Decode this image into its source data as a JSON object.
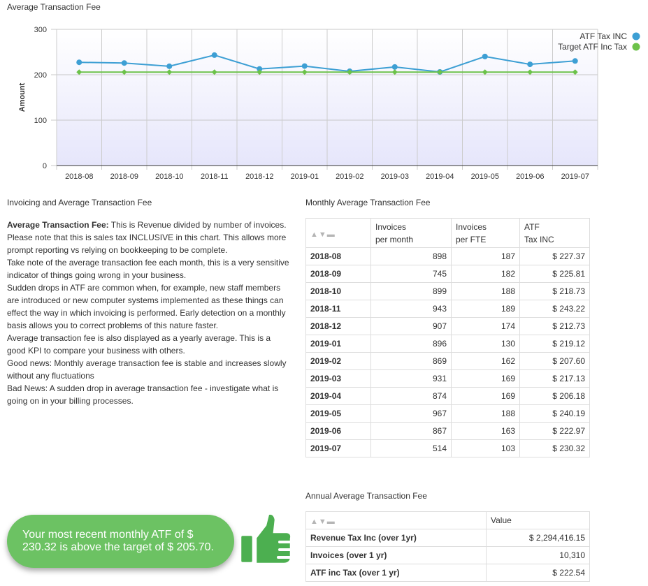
{
  "chart_title": "Average Transaction Fee",
  "chart_data": {
    "type": "line",
    "title": "Average Transaction Fee",
    "xlabel": "",
    "ylabel": "Amount",
    "ylim": [
      0,
      300
    ],
    "yticks": [
      "0",
      "100",
      "200",
      "300"
    ],
    "categories": [
      "2018-08",
      "2018-09",
      "2018-10",
      "2018-11",
      "2018-12",
      "2019-01",
      "2019-02",
      "2019-03",
      "2019-04",
      "2019-05",
      "2019-06",
      "2019-07"
    ],
    "series": [
      {
        "name": "ATF Tax INC",
        "color": "#3d9fd4",
        "values": [
          227.37,
          225.81,
          218.73,
          243.22,
          212.73,
          219.12,
          207.6,
          217.13,
          206.18,
          240.19,
          222.97,
          230.32
        ]
      },
      {
        "name": "Target ATF Inc Tax",
        "color": "#6cc24a",
        "values": [
          205.7,
          205.7,
          205.7,
          205.7,
          205.7,
          205.7,
          205.7,
          205.7,
          205.7,
          205.7,
          205.7,
          205.7
        ]
      }
    ],
    "legend": "top-right",
    "grid": true
  },
  "left_section": {
    "title": "Invoicing and Average Transaction Fee",
    "lead_label": "Average Transaction Fee:",
    "lead_text": " This is Revenue divided by number of invoices. Please note that this is sales tax INCLUSIVE in this chart. This allows more prompt reporting vs relying on bookkeeping to be complete.",
    "p2": "Take note of the average transaction fee each month, this is a very sensitive indicator of things going wrong in your business.",
    "p3": "Sudden drops in ATF are common when, for example, new staff members are introduced or new computer systems implemented as these things can effect the way in which invoicing is performed. Early detection on a monthly basis allows you to correct problems of this nature faster.",
    "p4": "Average transaction fee is also displayed as a yearly average. This is a good KPI to compare your business with others.",
    "p5": "Good news: Monthly average transaction fee is stable and increases slowly without any fluctuations",
    "p6": "Bad News: A sudden drop in average transaction fee - investigate what is going on in your billing processes."
  },
  "monthly": {
    "title": "Monthly Average Transaction Fee",
    "sort_icon": "▲▼▬",
    "headers": {
      "h1a": "Invoices",
      "h1b": "per month",
      "h2a": "Invoices",
      "h2b": "per FTE",
      "h3a": "ATF",
      "h3b": "Tax INC"
    },
    "rows": [
      {
        "month": "2018-08",
        "per_month": "898",
        "per_fte": "187",
        "atf": "$ 227.37"
      },
      {
        "month": "2018-09",
        "per_month": "745",
        "per_fte": "182",
        "atf": "$ 225.81"
      },
      {
        "month": "2018-10",
        "per_month": "899",
        "per_fte": "188",
        "atf": "$ 218.73"
      },
      {
        "month": "2018-11",
        "per_month": "943",
        "per_fte": "189",
        "atf": "$ 243.22"
      },
      {
        "month": "2018-12",
        "per_month": "907",
        "per_fte": "174",
        "atf": "$ 212.73"
      },
      {
        "month": "2019-01",
        "per_month": "896",
        "per_fte": "130",
        "atf": "$ 219.12"
      },
      {
        "month": "2019-02",
        "per_month": "869",
        "per_fte": "162",
        "atf": "$ 207.60"
      },
      {
        "month": "2019-03",
        "per_month": "931",
        "per_fte": "169",
        "atf": "$ 217.13"
      },
      {
        "month": "2019-04",
        "per_month": "874",
        "per_fte": "169",
        "atf": "$ 206.18"
      },
      {
        "month": "2019-05",
        "per_month": "967",
        "per_fte": "188",
        "atf": "$ 240.19"
      },
      {
        "month": "2019-06",
        "per_month": "867",
        "per_fte": "163",
        "atf": "$ 222.97"
      },
      {
        "month": "2019-07",
        "per_month": "514",
        "per_fte": "103",
        "atf": "$ 230.32"
      }
    ]
  },
  "annual": {
    "title": "Annual Average Transaction Fee",
    "sort_icon": "▲▼▬",
    "value_header": "Value",
    "rows": [
      {
        "label": "Revenue Tax Inc (over 1yr)",
        "value": "$ 2,294,416.15"
      },
      {
        "label": "Invoices (over 1 yr)",
        "value": "10,310"
      },
      {
        "label": "ATF inc Tax (over 1 yr)",
        "value": "$ 222.54"
      }
    ]
  },
  "banner": {
    "text": "Your most recent monthly ATF of $ 230.32 is above the target of $ 205.70.",
    "icon": "thumbs-up-icon",
    "color": "#6cc263"
  }
}
